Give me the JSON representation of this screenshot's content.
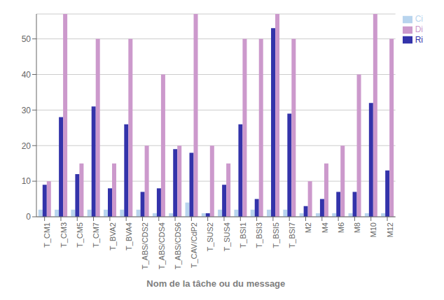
{
  "chart_data": {
    "type": "bar",
    "xlabel": "Nom de la tâche ou du message",
    "categories": [
      "T_CM1",
      "T_CM3",
      "T_CM5",
      "T_CM7",
      "T_BVA2",
      "T_BVA4",
      "T_ABS/CDS2",
      "T_ABS/CDS4",
      "T_ABS/CDS6",
      "T_CAV/CdP2",
      "T_SUS2",
      "T_SUS4",
      "T_BSI1",
      "T_BSI3",
      "T_BSI5",
      "T_BSI7",
      "M2",
      "M4",
      "M6",
      "M8",
      "M10",
      "M12"
    ],
    "series": [
      {
        "name": "Ci",
        "color": "#b8d4ee",
        "values": [
          2,
          2,
          2,
          2,
          2,
          2,
          2,
          1,
          1,
          4,
          1,
          2,
          2,
          2,
          2,
          2,
          1,
          1,
          1,
          1,
          1,
          1
        ]
      },
      {
        "name": "Ri",
        "color": "#3333aa",
        "values": [
          9,
          28,
          12,
          31,
          8,
          26,
          7,
          8,
          19,
          18,
          1,
          9,
          26,
          5,
          53,
          29,
          3,
          5,
          7,
          7,
          32,
          13
        ]
      },
      {
        "name": "Di",
        "color": "#cc99cc",
        "values": [
          10,
          57,
          15,
          50,
          15,
          50,
          20,
          40,
          20,
          57,
          20,
          15,
          50,
          50,
          57,
          50,
          10,
          15,
          20,
          40,
          57,
          50
        ]
      }
    ],
    "ylim": [
      0,
      57
    ],
    "yticks": [
      0,
      10,
      20,
      30,
      40,
      50
    ],
    "grid": true,
    "legend": "upper right"
  }
}
